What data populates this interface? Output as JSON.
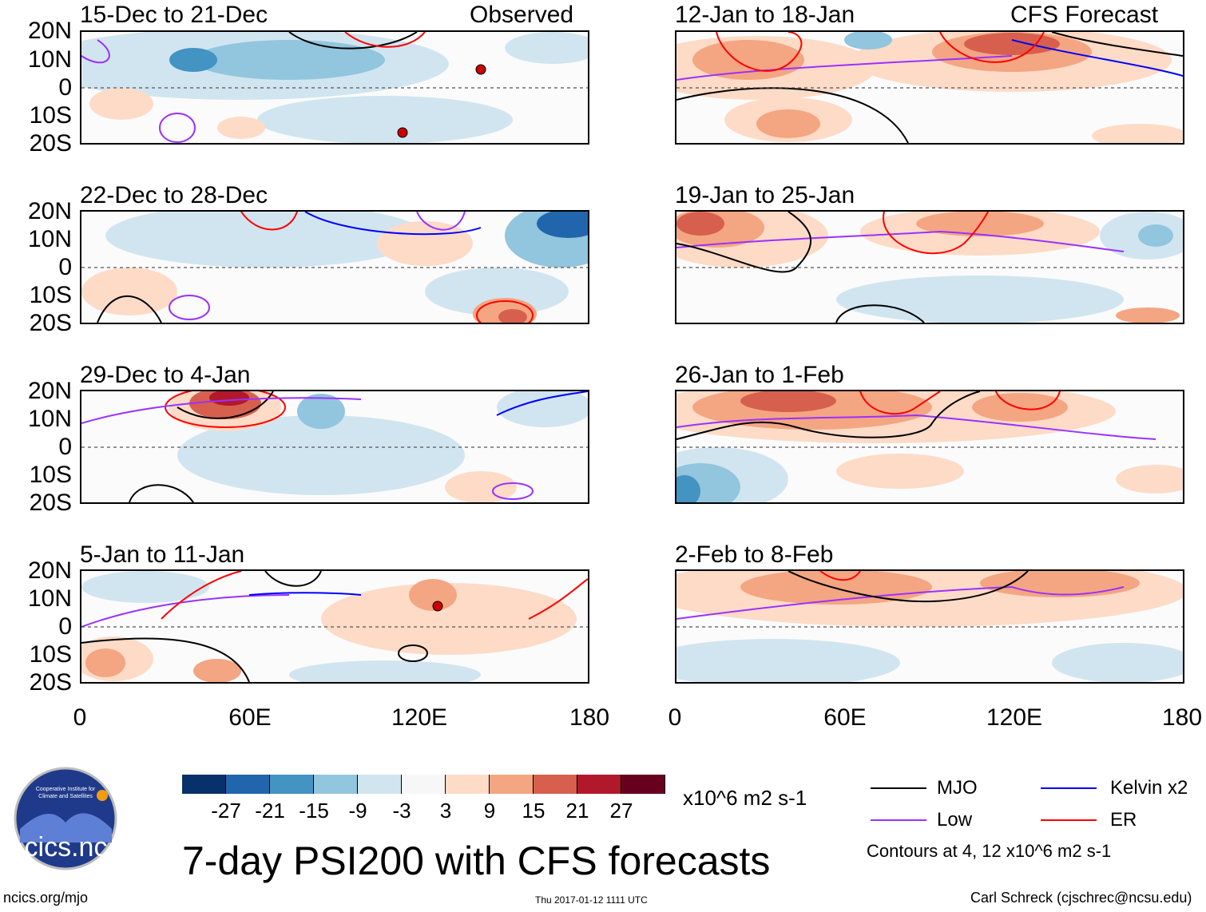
{
  "figure_title": "7-day PSI200 with CFS forecasts",
  "observed_label": "Observed",
  "forecast_label": "CFS Forecast",
  "panels_observed": [
    {
      "title": "15-Dec to 21-Dec"
    },
    {
      "title": "22-Dec to 28-Dec"
    },
    {
      "title": "29-Dec to 4-Jan"
    },
    {
      "title": "5-Jan to 11-Jan"
    }
  ],
  "panels_forecast": [
    {
      "title": "12-Jan to 18-Jan"
    },
    {
      "title": "19-Jan to 25-Jan"
    },
    {
      "title": "26-Jan to 1-Feb"
    },
    {
      "title": "2-Feb to 8-Feb"
    }
  ],
  "lat_labels": [
    "20N",
    "10N",
    "0",
    "10S",
    "20S"
  ],
  "lon_labels": [
    "0",
    "60E",
    "120E",
    "180"
  ],
  "colorbar": {
    "colors": [
      "#08306b",
      "#2166ac",
      "#4393c3",
      "#92c5de",
      "#d1e5f0",
      "#f7f7f7",
      "#fddbc7",
      "#f4a582",
      "#d6604d",
      "#b2182b",
      "#67001f"
    ],
    "ticks": [
      "-27",
      "-21",
      "-15",
      "-9",
      "-3",
      "3",
      "9",
      "15",
      "21",
      "27"
    ],
    "units": "x10^6 m2 s-1"
  },
  "legend": {
    "items": [
      {
        "label": "MJO",
        "color": "#000000"
      },
      {
        "label": "Kelvin x2",
        "color": "#0000ff"
      },
      {
        "label": "Low",
        "color": "#9b30ff"
      },
      {
        "label": "ER",
        "color": "#ff0000"
      }
    ],
    "note": "Contours at 4, 12 x10^6 m2 s-1"
  },
  "logo_text": "cics.nc",
  "logo_ring_text": "Cooperative Institute for Climate and Satellites",
  "website": "ncics.org/mjo",
  "timestamp": "Thu 2017-01-12 1111 UTC",
  "credit": "Carl Schreck (cjschrec@ncsu.edu)"
}
